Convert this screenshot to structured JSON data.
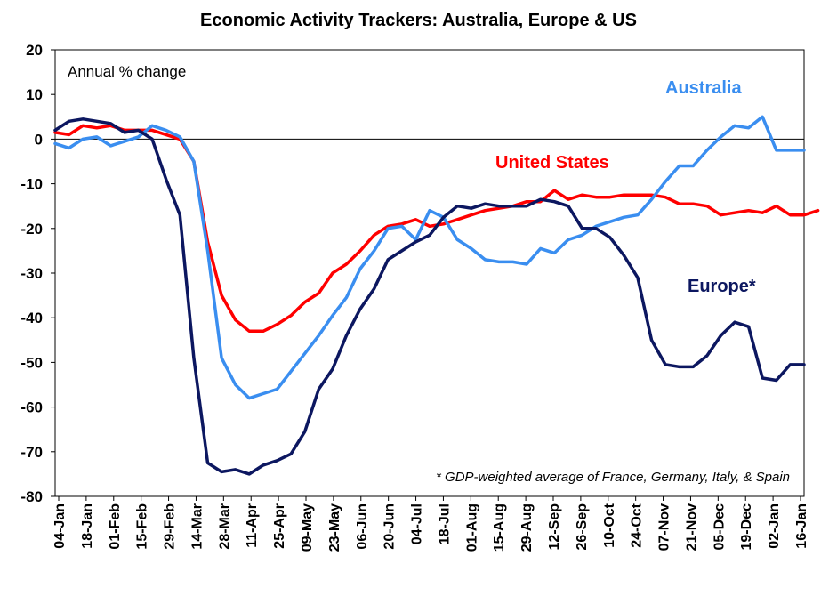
{
  "chart_data": {
    "type": "line",
    "title": "Economic Activity Trackers: Australia, Europe & US",
    "ylabel": "Annual % change",
    "ylim": [
      -80,
      20
    ],
    "yticks": [
      20,
      10,
      0,
      -10,
      -20,
      -30,
      -40,
      -50,
      -60,
      -70,
      -80
    ],
    "x_tick_labels": [
      "04-Jan",
      "18-Jan",
      "01-Feb",
      "15-Feb",
      "29-Feb",
      "14-Mar",
      "28-Mar",
      "11-Apr",
      "25-Apr",
      "09-May",
      "23-May",
      "06-Jun",
      "20-Jun",
      "04-Jul",
      "18-Jul",
      "01-Aug",
      "15-Aug",
      "29-Aug",
      "12-Sep",
      "26-Sep",
      "10-Oct",
      "24-Oct",
      "07-Nov",
      "21-Nov",
      "05-Dec",
      "19-Dec",
      "02-Jan",
      "16-Jan"
    ],
    "grid": false,
    "zero_line": true,
    "note": "* GDP-weighted average of France, Germany, Italy, & Spain",
    "series": [
      {
        "name": "Australia",
        "color": "#3a8ef0",
        "values": [
          -1,
          -2,
          0,
          0.5,
          -1.5,
          -0.5,
          0.5,
          3,
          2,
          0.5,
          -5,
          -25,
          -49,
          -55,
          -58,
          -57,
          -56,
          -52,
          -48,
          -44,
          -39.5,
          -35.5,
          -29,
          -25,
          -20,
          -19.5,
          -22.5,
          -16,
          -17.5,
          -22.5,
          -24.5,
          -27,
          -27.5,
          -27.5,
          -28,
          -24.5,
          -25.5,
          -22.5,
          -21.5,
          -19.5,
          -18.5,
          -17.5,
          -17,
          -13.5,
          -9.5,
          -6,
          -6,
          -2.5,
          0.5,
          3,
          2.5,
          5,
          -2.5,
          -2.5,
          -2.5
        ]
      },
      {
        "name": "United States",
        "color": "#ff0000",
        "values": [
          1.5,
          1,
          3,
          2.5,
          3,
          2,
          2,
          2,
          1,
          0,
          -5,
          -23,
          -35,
          -40.5,
          -43,
          -43,
          -41.5,
          -39.5,
          -36.5,
          -34.5,
          -30,
          -28,
          -25,
          -21.5,
          -19.5,
          -19,
          -18,
          -19.5,
          -19,
          -18,
          -17,
          -16,
          -15.5,
          -15,
          -14,
          -14,
          -11.5,
          -13.5,
          -12.5,
          -13,
          -13,
          -12.5,
          -12.5,
          -12.5,
          -13,
          -14.5,
          -14.5,
          -15,
          -17,
          -16.5,
          -16,
          -16.5,
          -15,
          -17,
          -17,
          -16
        ]
      },
      {
        "name": "Europe*",
        "color": "#0c1760",
        "values": [
          2,
          4,
          4.5,
          4,
          3.5,
          1.5,
          2,
          0,
          -9,
          -17,
          -49,
          -72.5,
          -74.5,
          -74,
          -75,
          -73,
          -72,
          -70.5,
          -65.5,
          -56,
          -51.5,
          -44,
          -38,
          -33.5,
          -27,
          -25,
          -23,
          -21.5,
          -17.5,
          -15,
          -15.5,
          -14.5,
          -15,
          -15,
          -15,
          -13.5,
          -14,
          -15,
          -20,
          -20,
          -22,
          -26,
          -31,
          -45,
          -50.5,
          -51,
          -51,
          -48.5,
          -44,
          -41,
          -42,
          -53.5,
          -54,
          -50.5,
          -50.5
        ]
      }
    ]
  }
}
